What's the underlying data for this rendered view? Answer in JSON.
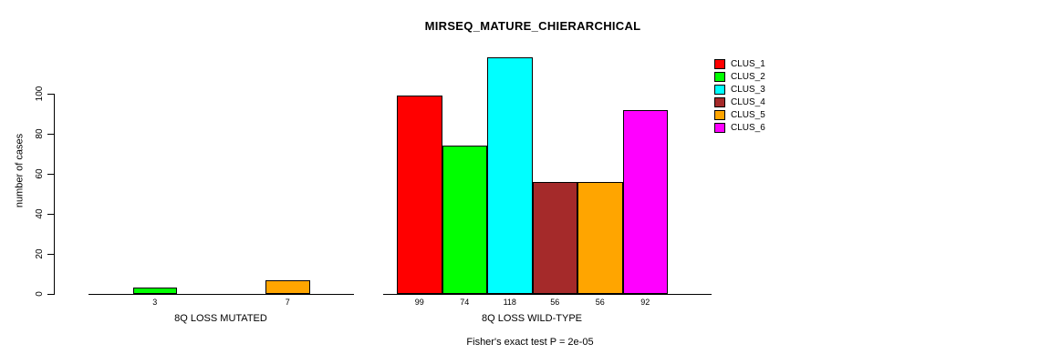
{
  "title": "MIRSEQ_MATURE_CHIERARCHICAL",
  "footer": "Fisher's exact test P = 2e-05",
  "y_axis": {
    "label": "number of cases"
  },
  "legend": {
    "items": [
      {
        "label": "CLUS_1",
        "color": "#FF0000"
      },
      {
        "label": "CLUS_2",
        "color": "#00FF00"
      },
      {
        "label": "CLUS_3",
        "color": "#00FFFF"
      },
      {
        "label": "CLUS_4",
        "color": "#A52A2A"
      },
      {
        "label": "CLUS_5",
        "color": "#FFA500"
      },
      {
        "label": "CLUS_6",
        "color": "#FF00FF"
      }
    ]
  },
  "chart_data": {
    "type": "bar",
    "title": "MIRSEQ_MATURE_CHIERARCHICAL",
    "ylabel": "number of cases",
    "ylim": [
      0,
      100
    ],
    "yticks": [
      0,
      20,
      40,
      60,
      80,
      100
    ],
    "grid": false,
    "legend_position": "right",
    "annotation": "Fisher's exact test P = 2e-05",
    "clusters": [
      "CLUS_1",
      "CLUS_2",
      "CLUS_3",
      "CLUS_4",
      "CLUS_5",
      "CLUS_6"
    ],
    "groups": [
      {
        "label": "8Q LOSS MUTATED",
        "bars": [
          {
            "cluster": "CLUS_2",
            "value": 3,
            "color": "#00FF00"
          },
          {
            "cluster": "CLUS_5",
            "value": 7,
            "color": "#FFA500"
          }
        ]
      },
      {
        "label": "8Q LOSS WILD-TYPE",
        "bars": [
          {
            "cluster": "CLUS_1",
            "value": 99,
            "color": "#FF0000"
          },
          {
            "cluster": "CLUS_2",
            "value": 74,
            "color": "#00FF00"
          },
          {
            "cluster": "CLUS_3",
            "value": 118,
            "color": "#00FFFF"
          },
          {
            "cluster": "CLUS_4",
            "value": 56,
            "color": "#A52A2A"
          },
          {
            "cluster": "CLUS_5",
            "value": 56,
            "color": "#FFA500"
          },
          {
            "cluster": "CLUS_6",
            "value": 92,
            "color": "#FF00FF"
          }
        ]
      }
    ]
  }
}
